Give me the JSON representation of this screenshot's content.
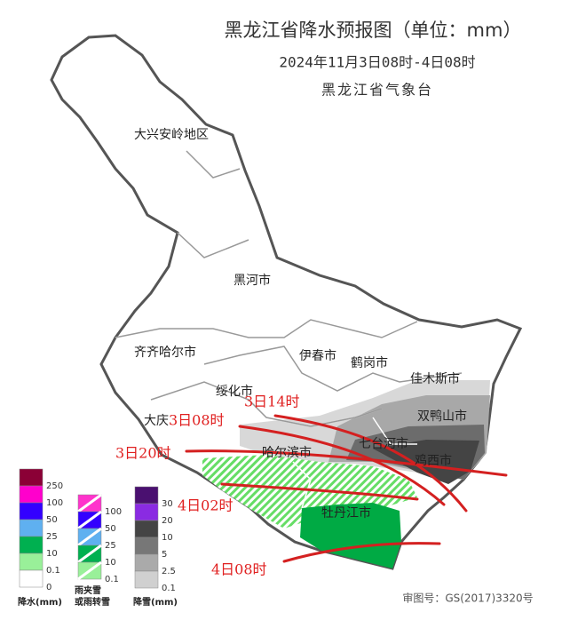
{
  "header": {
    "title": "黑龙江省降水预报图（单位：mm）",
    "subtitle": "2024年11月3日08时-4日08时",
    "agency": "黑龙江省气象台"
  },
  "regions": [
    "大兴安岭地区",
    "黑河市",
    "齐齐哈尔市",
    "伊春市",
    "鹤岗市",
    "佳木斯市",
    "绥化市",
    "双鸭山市",
    "大庆",
    "哈尔滨市",
    "七台河市",
    "鸡西市",
    "牡丹江市"
  ],
  "times": [
    "3日14时",
    "3日08时",
    "3日20时",
    "4日02时",
    "4日08时"
  ],
  "legends": [
    {
      "title": "降水(mm)",
      "labels": [
        250,
        100,
        50,
        25,
        10,
        0.1,
        0
      ],
      "colors": [
        "#8b0036",
        "#ff00cc",
        "#3300ff",
        "#5fb0f0",
        "#00b050",
        "#99f099",
        "#ffffff"
      ]
    },
    {
      "title": [
        "雨夹雪",
        "或雨转雪"
      ],
      "labels": [
        100,
        50,
        25,
        10,
        0.1
      ],
      "colors": [
        "#ff33cc",
        "#3300ff",
        "#5fb0f0",
        "#00b050",
        "#99f099"
      ]
    },
    {
      "title": "降雪(mm)",
      "labels": [
        30,
        20,
        10,
        5,
        2.5,
        0.1
      ],
      "colors": [
        "#4a1070",
        "#8a2be2",
        "#444444",
        "#777777",
        "#aaaaaa",
        "#d0d0d0"
      ]
    }
  ],
  "footer": "审图号：GS(2017)3320号"
}
